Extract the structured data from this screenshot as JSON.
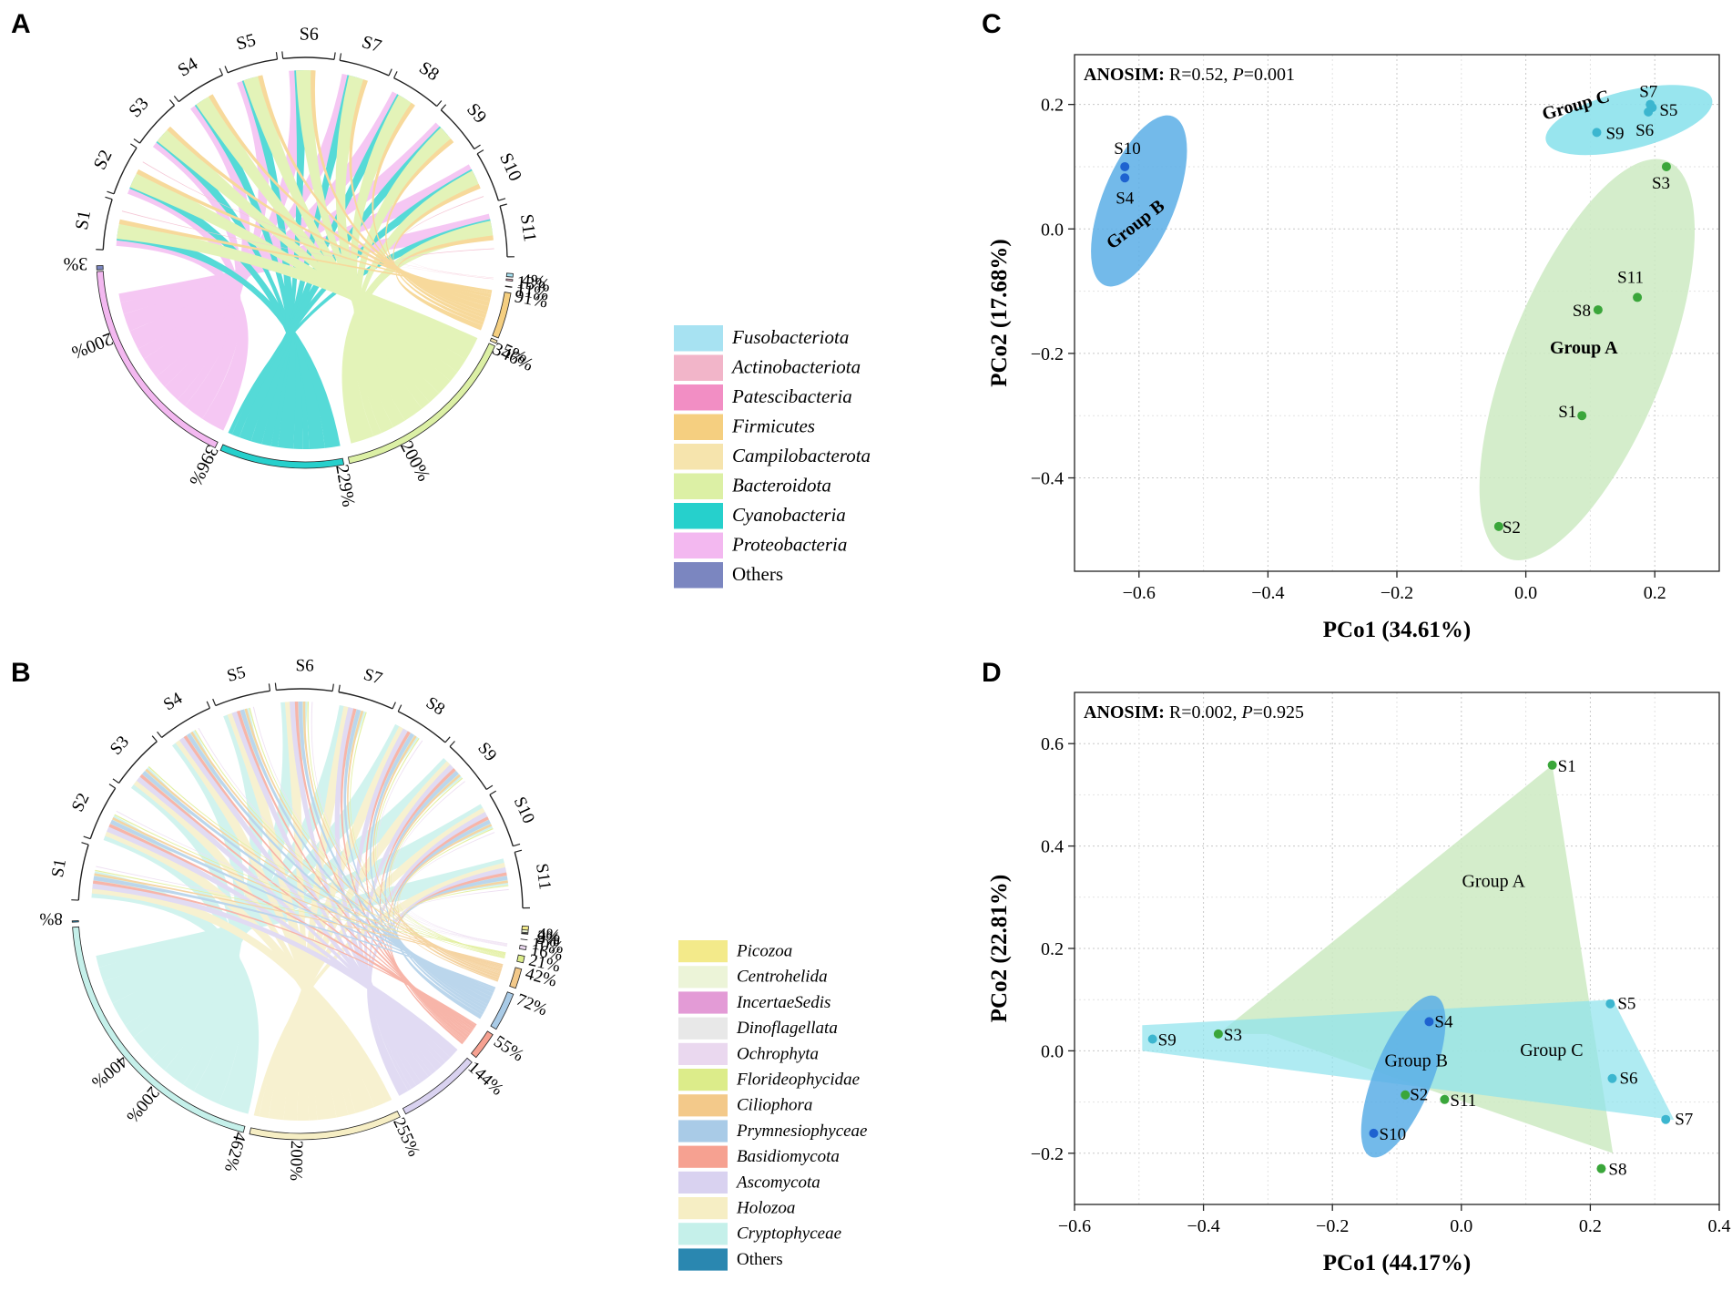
{
  "panels": {
    "A": "A",
    "B": "B",
    "C": "C",
    "D": "D"
  },
  "chart_data": [
    {
      "type": "chord",
      "panel": "A",
      "samples": [
        "S1",
        "S2",
        "S3",
        "S4",
        "S5",
        "S6",
        "S7",
        "S8",
        "S9",
        "S10",
        "S11"
      ],
      "legend": [
        {
          "name": "Fusobacteriota",
          "color": "#a7e2f2",
          "italic": true
        },
        {
          "name": "Actinobacteriota",
          "color": "#f2b5c9",
          "italic": true
        },
        {
          "name": "Patescibacteria",
          "color": "#f28ec4",
          "italic": true
        },
        {
          "name": "Firmicutes",
          "color": "#f5cf80",
          "italic": true
        },
        {
          "name": "Campilobacterota",
          "color": "#f6e4ad",
          "italic": true
        },
        {
          "name": "Bacteroidota",
          "color": "#dcf0a5",
          "italic": true
        },
        {
          "name": "Cyanobacteria",
          "color": "#26d0cc",
          "italic": true
        },
        {
          "name": "Proteobacteria",
          "color": "#f3b8f0",
          "italic": true
        },
        {
          "name": "Others",
          "color": "#7b86c0",
          "italic": false
        }
      ],
      "taxa_totals": [
        "3%",
        "396%",
        "200%",
        "229%",
        "346%",
        "200%",
        "91%",
        "5%",
        "11%",
        "13%",
        "4%"
      ],
      "taxa_arcs": [
        {
          "taxon": "Others",
          "pct": "3%"
        },
        {
          "taxon": "Proteobacteria",
          "pct": "396%",
          "mid": "200%"
        },
        {
          "taxon": "Cyanobacteria",
          "pct": "229%"
        },
        {
          "taxon": "Bacteroidota",
          "pct": "346%",
          "mid": "200%"
        },
        {
          "taxon": "Campilobacterota",
          "pct": "5%"
        },
        {
          "taxon": "Firmicutes",
          "pct": "91%"
        },
        {
          "taxon": "Patescibacteria",
          "pct": "11%"
        },
        {
          "taxon": "Actinobacteriota",
          "pct": "13%"
        },
        {
          "taxon": "Fusobacteriota",
          "pct": "4%"
        }
      ]
    },
    {
      "type": "chord",
      "panel": "B",
      "samples": [
        "S1",
        "S2",
        "S3",
        "S4",
        "S5",
        "S6",
        "S7",
        "S8",
        "S9",
        "S10",
        "S11"
      ],
      "legend": [
        {
          "name": "Picozoa",
          "color": "#f3ea8a",
          "italic": true
        },
        {
          "name": "Centrohelida",
          "color": "#ecf4d8",
          "italic": true
        },
        {
          "name": "IncertaeSedis",
          "color": "#e39bd6",
          "italic": true
        },
        {
          "name": "Dinoflagellata",
          "color": "#e8e8e8",
          "italic": true
        },
        {
          "name": "Ochrophyta",
          "color": "#ead8ef",
          "italic": true
        },
        {
          "name": "Florideophycidae",
          "color": "#dcec8a",
          "italic": true
        },
        {
          "name": "Ciliophora",
          "color": "#f3c98a",
          "italic": true
        },
        {
          "name": "Prymnesiophyceae",
          "color": "#a9cbe7",
          "italic": true
        },
        {
          "name": "Basidiomycota",
          "color": "#f6a191",
          "italic": true
        },
        {
          "name": "Ascomycota",
          "color": "#d9d2f0",
          "italic": true
        },
        {
          "name": "Holozoa",
          "color": "#f6eec4",
          "italic": true
        },
        {
          "name": "Cryptophyceae",
          "color": "#c5f0ea",
          "italic": true
        },
        {
          "name": "Others",
          "color": "#2a87b0",
          "italic": false
        }
      ],
      "taxa_arcs": [
        {
          "taxon": "Others",
          "pct": "8%"
        },
        {
          "taxon": "Cryptophyceae",
          "pct": "462%",
          "mid1": "400%",
          "mid2": "200%"
        },
        {
          "taxon": "Holozoa",
          "pct": "255%",
          "mid": "200%"
        },
        {
          "taxon": "Ascomycota",
          "pct": "144%"
        },
        {
          "taxon": "Basidiomycota",
          "pct": "55%"
        },
        {
          "taxon": "Prymnesiophyceae",
          "pct": "72%"
        },
        {
          "taxon": "Ciliophora",
          "pct": "42%"
        },
        {
          "taxon": "Florideophycidae",
          "pct": "21%"
        },
        {
          "taxon": "Ochrophyta",
          "pct": "16%"
        },
        {
          "taxon": "Dinoflagellata",
          "pct": "10%"
        },
        {
          "taxon": "IncertaeSedis",
          "pct": "9%"
        },
        {
          "taxon": "Centrohelida",
          "pct": "2%"
        },
        {
          "taxon": "Picozoa",
          "pct": "4%"
        }
      ]
    },
    {
      "type": "scatter",
      "panel": "C",
      "annotation": {
        "bold": "ANOSIM:",
        "text": " R=0.52, ",
        "p_label": "P",
        "p_value": "=0.001"
      },
      "xlabel": "PCo1 (34.61%)",
      "ylabel": "PCo2 (17.68%)",
      "xlim": [
        -0.7,
        0.3
      ],
      "ylim": [
        -0.55,
        0.28
      ],
      "xticks": [
        -0.6,
        -0.4,
        -0.2,
        0.0,
        0.2
      ],
      "xtick_labels": [
        "−0.6",
        "−0.4",
        "−0.2",
        "0.0",
        "0.2"
      ],
      "yticks": [
        -0.4,
        -0.2,
        0.0,
        0.2
      ],
      "ytick_labels": [
        "−0.4",
        "−0.2",
        "0.0",
        "0.2"
      ],
      "groups": [
        {
          "name": "Group A",
          "color": "#3aa63a",
          "fill": "#cdeac2"
        },
        {
          "name": "Group B",
          "color": "#1e62d0",
          "fill": "#5aaee6"
        },
        {
          "name": "Group C",
          "color": "#3cb6cf",
          "fill": "#8de2ec"
        }
      ],
      "points": [
        {
          "label": "S1",
          "x": 0.087,
          "y": -0.3,
          "group": "Group A"
        },
        {
          "label": "S2",
          "x": -0.042,
          "y": -0.478,
          "group": "Group A"
        },
        {
          "label": "S3",
          "x": 0.218,
          "y": 0.1,
          "group": "Group A"
        },
        {
          "label": "S8",
          "x": 0.112,
          "y": -0.13,
          "group": "Group A"
        },
        {
          "label": "S11",
          "x": 0.173,
          "y": -0.11,
          "group": "Group A"
        },
        {
          "label": "S4",
          "x": -0.622,
          "y": 0.082,
          "group": "Group B"
        },
        {
          "label": "S10",
          "x": -0.622,
          "y": 0.1,
          "group": "Group B"
        },
        {
          "label": "S5",
          "x": 0.196,
          "y": 0.195,
          "group": "Group C"
        },
        {
          "label": "S6",
          "x": 0.19,
          "y": 0.188,
          "group": "Group C"
        },
        {
          "label": "S7",
          "x": 0.193,
          "y": 0.2,
          "group": "Group C"
        },
        {
          "label": "S9",
          "x": 0.11,
          "y": 0.155,
          "group": "Group C"
        }
      ]
    },
    {
      "type": "scatter",
      "panel": "D",
      "annotation": {
        "bold": "ANOSIM:",
        "text": " R=0.002, ",
        "p_label": "P",
        "p_value": "=0.925"
      },
      "xlabel": "PCo1 (44.17%)",
      "ylabel": "PCo2 (22.81%)",
      "xlim": [
        -0.6,
        0.4
      ],
      "ylim": [
        -0.3,
        0.7
      ],
      "xticks": [
        -0.6,
        -0.4,
        -0.2,
        0.0,
        0.2,
        0.4
      ],
      "xtick_labels": [
        "−0.6",
        "−0.4",
        "−0.2",
        "0.0",
        "0.2",
        "0.4"
      ],
      "yticks": [
        -0.2,
        0.0,
        0.2,
        0.4,
        0.6
      ],
      "ytick_labels": [
        "−0.2",
        "0.0",
        "0.2",
        "0.4",
        "0.6"
      ],
      "groups": [
        {
          "name": "Group A",
          "color": "#3aa63a",
          "fill": "#cdeac2"
        },
        {
          "name": "Group B",
          "color": "#1e62d0",
          "fill": "#5aaee6"
        },
        {
          "name": "Group C",
          "color": "#3cb6cf",
          "fill": "#8de2ec"
        }
      ],
      "points": [
        {
          "label": "S1",
          "x": 0.141,
          "y": 0.558,
          "group": "Group A"
        },
        {
          "label": "S2",
          "x": -0.087,
          "y": -0.086,
          "group": "Group A"
        },
        {
          "label": "S3",
          "x": -0.377,
          "y": 0.033,
          "group": "Group A"
        },
        {
          "label": "S8",
          "x": 0.217,
          "y": -0.23,
          "group": "Group A"
        },
        {
          "label": "S11",
          "x": -0.026,
          "y": -0.095,
          "group": "Group A"
        },
        {
          "label": "S4",
          "x": -0.05,
          "y": 0.057,
          "group": "Group B"
        },
        {
          "label": "S10",
          "x": -0.136,
          "y": -0.161,
          "group": "Group B"
        },
        {
          "label": "S5",
          "x": 0.231,
          "y": 0.092,
          "group": "Group C"
        },
        {
          "label": "S6",
          "x": 0.234,
          "y": -0.054,
          "group": "Group C"
        },
        {
          "label": "S7",
          "x": 0.317,
          "y": -0.134,
          "group": "Group C"
        },
        {
          "label": "S9",
          "x": -0.479,
          "y": 0.023,
          "group": "Group C"
        }
      ]
    }
  ]
}
